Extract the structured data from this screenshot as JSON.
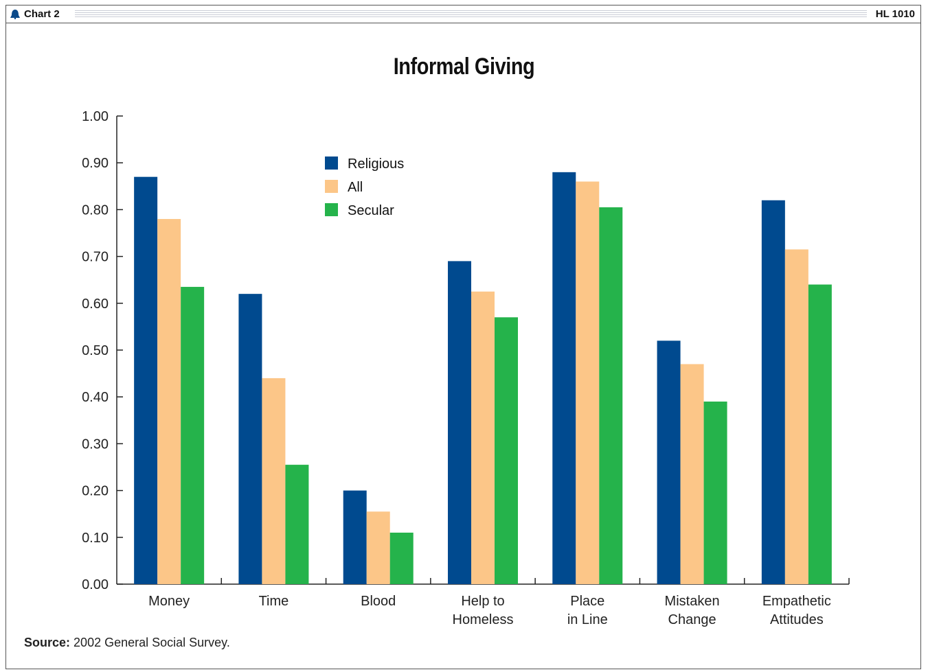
{
  "header": {
    "chart_label": "Chart 2",
    "code": "HL 1010"
  },
  "source": {
    "label": "Source:",
    "text": "2002 General Social Survey."
  },
  "colors": {
    "religious": "#004a8f",
    "all": "#fcc688",
    "secular": "#25b34b"
  },
  "chart_data": {
    "type": "bar",
    "title": "Informal Giving",
    "xlabel": "",
    "ylabel": "",
    "ylim": [
      0,
      1.0
    ],
    "yticks": [
      "0.00",
      "0.10",
      "0.20",
      "0.30",
      "0.40",
      "0.50",
      "0.60",
      "0.70",
      "0.80",
      "0.90",
      "1.00"
    ],
    "categories": [
      [
        "Money"
      ],
      [
        "Time"
      ],
      [
        "Blood"
      ],
      [
        "Help to",
        "Homeless"
      ],
      [
        "Place",
        "in Line"
      ],
      [
        "Mistaken",
        "Change"
      ],
      [
        "Empathetic",
        "Attitudes"
      ]
    ],
    "series": [
      {
        "name": "Religious",
        "color": "#004a8f",
        "values": [
          0.87,
          0.62,
          0.2,
          0.69,
          0.88,
          0.52,
          0.82
        ]
      },
      {
        "name": "All",
        "color": "#fcc688",
        "values": [
          0.78,
          0.44,
          0.155,
          0.625,
          0.86,
          0.47,
          0.715
        ]
      },
      {
        "name": "Secular",
        "color": "#25b34b",
        "values": [
          0.635,
          0.255,
          0.11,
          0.57,
          0.805,
          0.39,
          0.64
        ]
      }
    ],
    "legend_position": "top-center-left",
    "grid": false
  }
}
